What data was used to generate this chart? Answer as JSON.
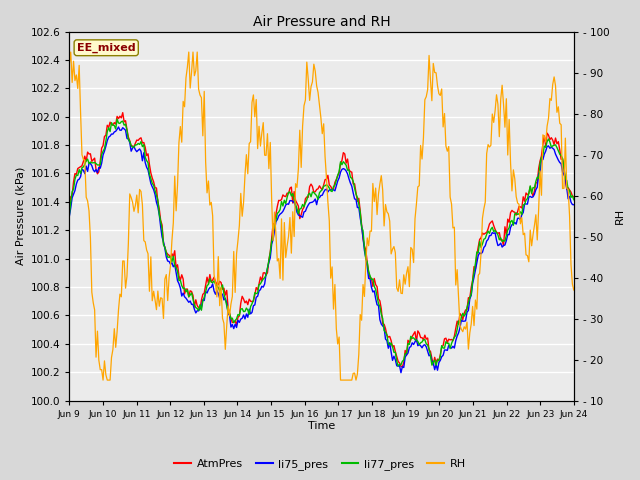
{
  "title": "Air Pressure and RH",
  "ylabel_left": "Air Pressure (kPa)",
  "ylabel_right": "RH",
  "xlabel": "Time",
  "ylim_left": [
    100.0,
    102.6
  ],
  "ylim_right": [
    10,
    100
  ],
  "yticks_left": [
    100.0,
    100.2,
    100.4,
    100.6,
    100.8,
    101.0,
    101.2,
    101.4,
    101.6,
    101.8,
    102.0,
    102.2,
    102.4,
    102.6
  ],
  "yticks_right": [
    10,
    20,
    30,
    40,
    50,
    60,
    70,
    80,
    90,
    100
  ],
  "xtick_labels": [
    "Jun 9",
    "Jun 10",
    "Jun 11",
    "Jun 12",
    "Jun 13",
    "Jun 14",
    "Jun 15",
    "Jun 16",
    "Jun 17",
    "Jun 18",
    "Jun 19",
    "Jun 20",
    "Jun 21",
    "Jun 22",
    "Jun 23",
    "Jun 24"
  ],
  "annotation_text": "EE_mixed",
  "annotation_color": "#8B0000",
  "annotation_bg": "#FFFACD",
  "annotation_edge": "#8B8000",
  "line_colors": {
    "AtmPres": "#FF0000",
    "li75_pres": "#0000FF",
    "li77_pres": "#00BB00",
    "RH": "#FFA500"
  },
  "legend_labels": [
    "AtmPres",
    "li75_pres",
    "li77_pres",
    "RH"
  ],
  "bg_color": "#D8D8D8",
  "plot_bg": "#EBEBEB",
  "grid_color": "#FFFFFF"
}
